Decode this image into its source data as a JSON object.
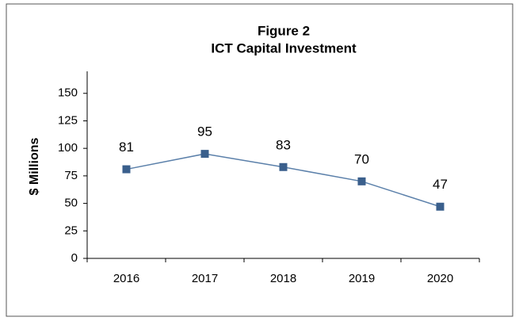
{
  "chart_data": {
    "type": "line",
    "title": "Figure 2",
    "subtitle": "ICT Capital Investment",
    "y_label": "$ Millions",
    "categories": [
      "2016",
      "2017",
      "2018",
      "2019",
      "2020"
    ],
    "values": [
      81,
      95,
      83,
      70,
      47
    ],
    "line_color": "#5b80aa",
    "marker_color": "#3a5f8c",
    "ylim": [
      0,
      170
    ],
    "yticks": [
      0,
      25,
      50,
      75,
      100,
      125,
      150
    ],
    "grid": false
  }
}
